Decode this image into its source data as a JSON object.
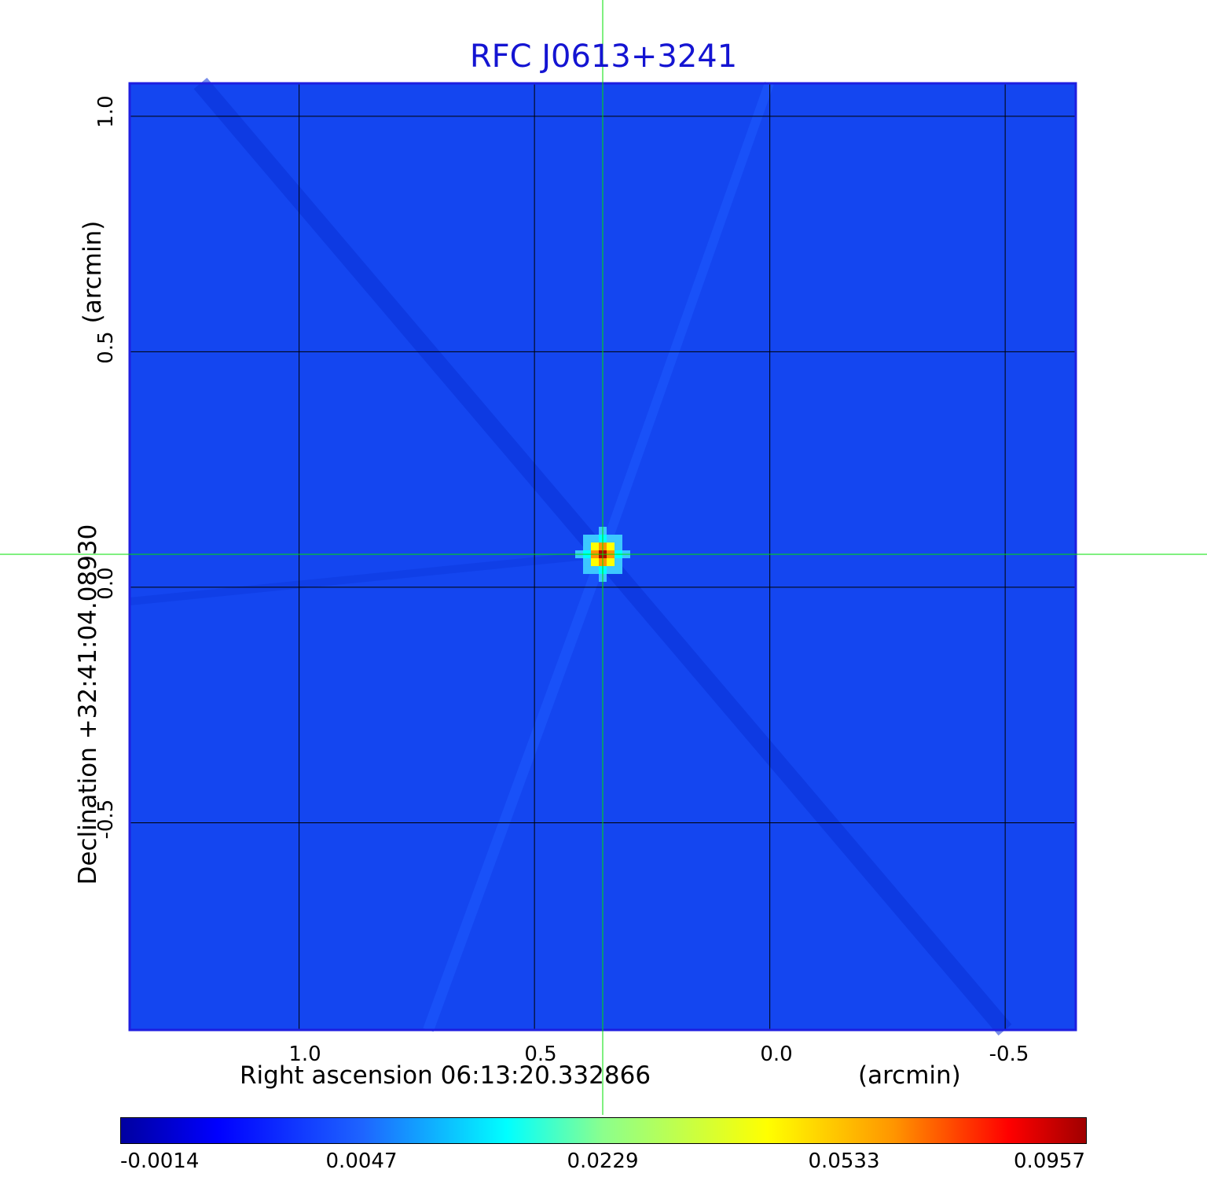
{
  "chart_data": {
    "type": "heatmap",
    "title": "RFC J0613+3241",
    "xlabel": "Right ascension  06:13:20.332866",
    "xunit": "(arcmin)",
    "ylabel": "Declination  +32:41:04.08930",
    "yunit": "(arcmin)",
    "x_range": [
      1.36,
      -0.65
    ],
    "y_range": [
      -0.94,
      1.07
    ],
    "x_ticks": [
      "1.0",
      "0.5",
      "0.0",
      "-0.5"
    ],
    "y_ticks": [
      "1.0",
      "0.5",
      "0.0",
      "-0.5"
    ],
    "grid": true,
    "crosshair": {
      "x": 0.355,
      "y": 0.07,
      "color": "#00e000"
    },
    "peak": {
      "x": 0.355,
      "y": 0.07,
      "value": 0.0957
    },
    "background_value": 0.0,
    "colorbar": {
      "ticks": [
        "-0.0014",
        "0.0047",
        "0.0229",
        "0.0533",
        "0.0957"
      ],
      "min": -0.0014,
      "max": 0.0957
    },
    "colors": {
      "title": "#1414d2",
      "frame": "#1e1ee0",
      "background": "#1446f0"
    }
  }
}
